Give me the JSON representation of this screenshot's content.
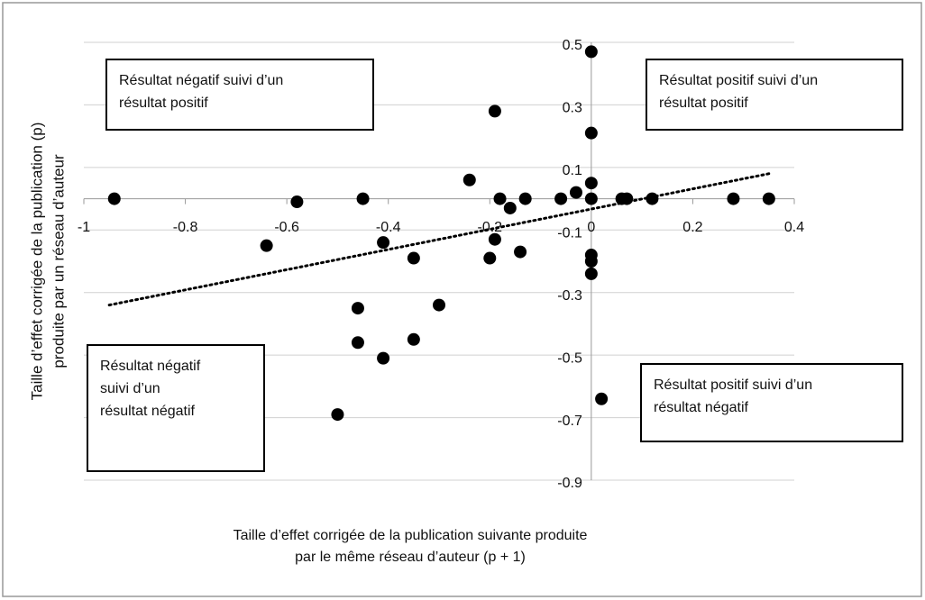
{
  "chart_data": {
    "type": "scatter",
    "x_label_lines": [
      "Taille d’effet corrigée de la publication suivante produite",
      "par le même réseau d’auteur  (p + 1)"
    ],
    "y_label_lines": [
      "Taille d’effet corrigée de la publication (p)",
      "produite par un réseau d’auteur"
    ],
    "x": [
      -0.94,
      -0.58,
      -0.45,
      -0.64,
      -0.41,
      -0.46,
      -0.46,
      -0.41,
      -0.35,
      -0.35,
      -0.3,
      -0.5,
      -0.24,
      -0.19,
      -0.18,
      -0.19,
      -0.2,
      -0.16,
      -0.14,
      -0.13,
      -0.06,
      -0.03,
      0,
      0,
      0,
      0,
      0,
      0,
      0,
      0.02,
      0.06,
      0.07,
      0.12,
      0.28,
      0.35
    ],
    "y": [
      0,
      -0.01,
      0,
      -0.15,
      -0.14,
      -0.35,
      -0.46,
      -0.51,
      -0.45,
      -0.19,
      -0.34,
      -0.69,
      0.06,
      0.28,
      0,
      -0.13,
      -0.19,
      -0.03,
      -0.17,
      0,
      0,
      0.02,
      0.47,
      0.21,
      0.05,
      0,
      -0.18,
      -0.2,
      -0.24,
      -0.64,
      0,
      0,
      0,
      0,
      0
    ],
    "color": "#000000",
    "trendline": {
      "x": [
        -0.95,
        0.35
      ],
      "y": [
        -0.34,
        0.08
      ]
    },
    "xlim": [
      -1,
      0.4
    ],
    "ylim": [
      -0.9,
      0.5
    ],
    "xticks": [
      -1,
      -0.8,
      -0.6,
      -0.4,
      -0.2,
      0,
      0.2,
      0.4
    ],
    "yticks": [
      0.5,
      0.3,
      0.1,
      -0.1,
      -0.3,
      -0.5,
      -0.7,
      -0.9
    ],
    "grid": true,
    "annotations": [
      {
        "lines": [
          "Résultat négatif suivi d’un",
          "résultat positif"
        ]
      },
      {
        "lines": [
          "Résultat positif suivi d’un",
          "résultat positif"
        ]
      },
      {
        "lines": [
          "Résultat négatif",
          "suivi d’un",
          "résultat négatif"
        ]
      },
      {
        "lines": [
          "Résultat positif suivi d’un",
          "résultat négatif"
        ]
      }
    ]
  }
}
